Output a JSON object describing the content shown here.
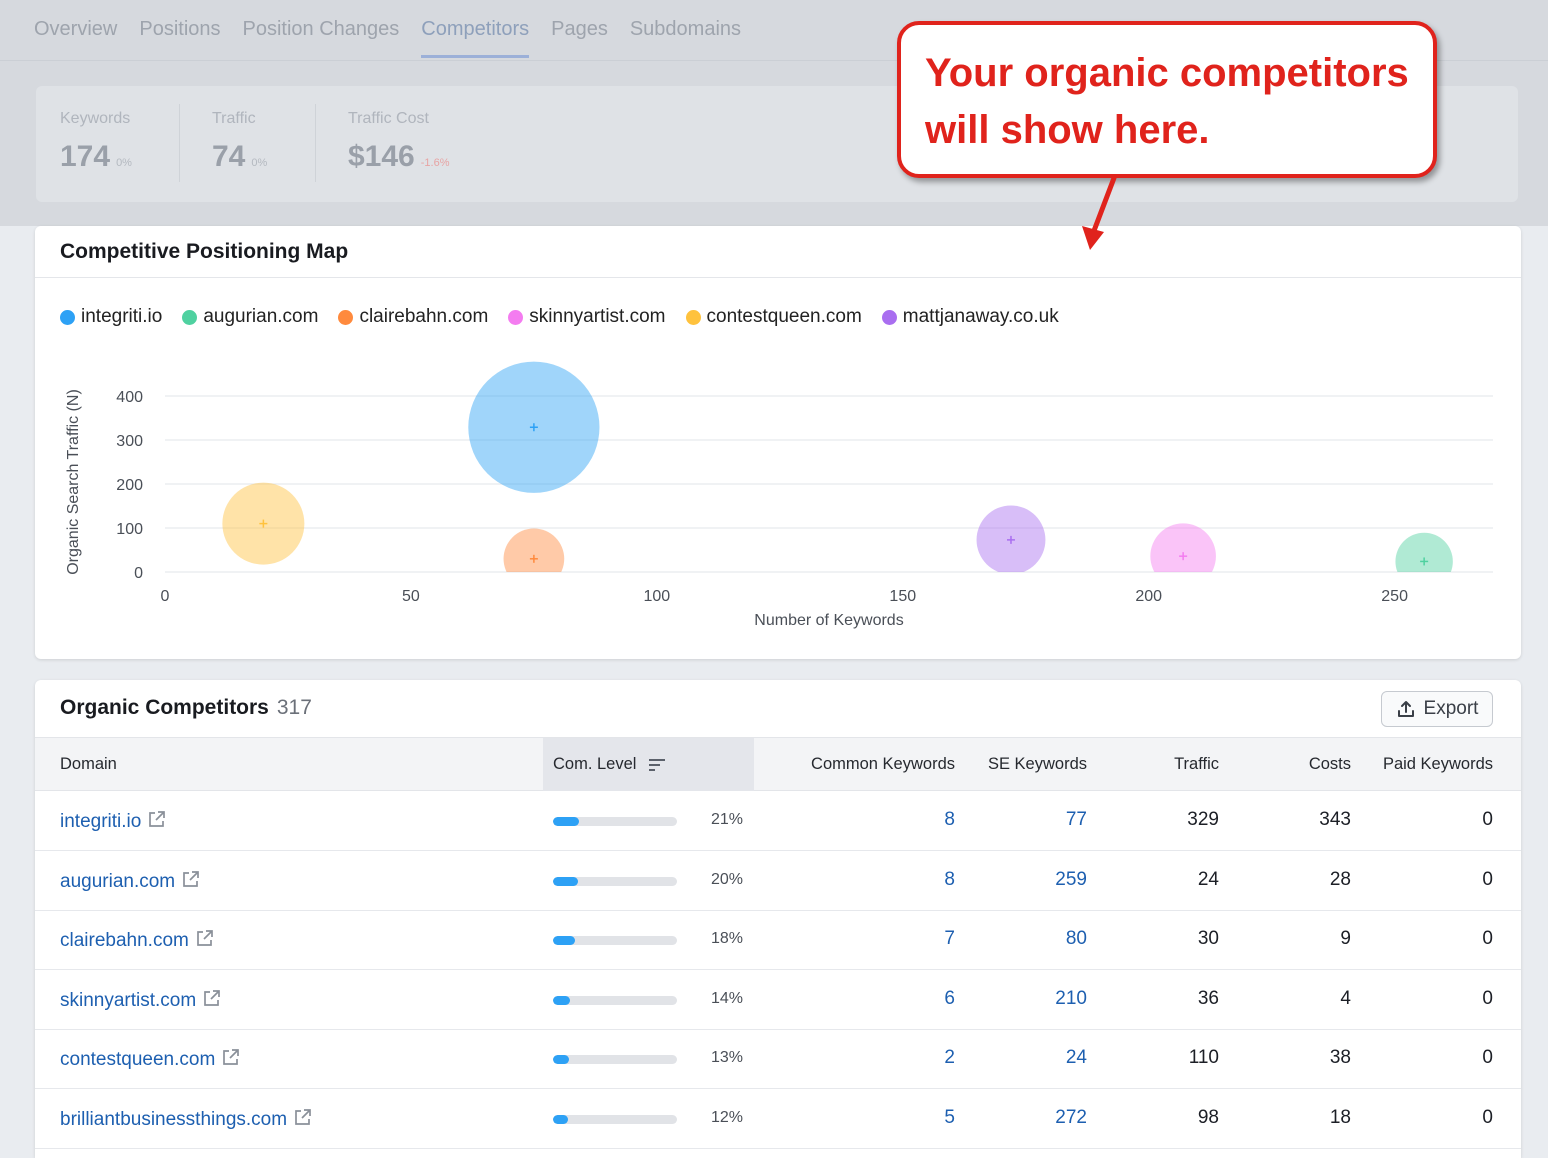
{
  "nav": {
    "tabs": [
      "Overview",
      "Positions",
      "Position Changes",
      "Competitors",
      "Pages",
      "Subdomains"
    ],
    "active_index": 3
  },
  "summary": {
    "keywords": {
      "label": "Keywords",
      "value": "174",
      "delta": "0%"
    },
    "traffic": {
      "label": "Traffic",
      "value": "74",
      "delta": "0%"
    },
    "traffic_cost": {
      "label": "Traffic Cost",
      "value": "$146",
      "delta": "-1.6%"
    }
  },
  "callout": {
    "text": "Your organic competitors\nwill show here.",
    "color": "#e0231c"
  },
  "map": {
    "title": "Competitive Positioning Map",
    "legend": [
      {
        "label": "integriti.io",
        "color": "#2da1f5"
      },
      {
        "label": "augurian.com",
        "color": "#4fd1a0"
      },
      {
        "label": "clairebahn.com",
        "color": "#ff8a3d"
      },
      {
        "label": "skinnyartist.com",
        "color": "#f47cf0"
      },
      {
        "label": "contestqueen.com",
        "color": "#ffc23d"
      },
      {
        "label": "mattjanaway.co.uk",
        "color": "#a96ef0"
      }
    ]
  },
  "chart_data": {
    "type": "scatter",
    "xlabel": "Number of Keywords",
    "ylabel": "Organic Search Traffic (N)",
    "xlim": [
      0,
      270
    ],
    "ylim": [
      0,
      400
    ],
    "x_ticks": [
      0,
      50,
      100,
      150,
      200,
      250
    ],
    "y_ticks": [
      0,
      100,
      200,
      300,
      400
    ],
    "grid": true,
    "points": [
      {
        "name": "integriti.io",
        "x": 75,
        "y": 329,
        "size": 8,
        "color": "#2da1f5"
      },
      {
        "name": "augurian.com",
        "x": 256,
        "y": 24,
        "size": 3.5,
        "color": "#4fd1a0"
      },
      {
        "name": "clairebahn.com",
        "x": 75,
        "y": 30,
        "size": 3.7,
        "color": "#ff8a3d"
      },
      {
        "name": "skinnyartist.com",
        "x": 207,
        "y": 36,
        "size": 4,
        "color": "#f47cf0"
      },
      {
        "name": "contestqueen.com",
        "x": 20,
        "y": 110,
        "size": 5,
        "color": "#ffc23d"
      },
      {
        "name": "mattjanaway.co.uk",
        "x": 172,
        "y": 73,
        "size": 4.2,
        "color": "#a96ef0"
      }
    ]
  },
  "competitors": {
    "title": "Organic Competitors",
    "count": "317",
    "export_label": "Export",
    "headers": {
      "domain": "Domain",
      "com_level": "Com. Level",
      "common_keywords": "Common Keywords",
      "se_keywords": "SE Keywords",
      "traffic": "Traffic",
      "costs": "Costs",
      "paid_keywords": "Paid Keywords"
    },
    "rows": [
      {
        "domain": "integriti.io",
        "level": 21,
        "level_label": "21%",
        "common": "8",
        "se": "77",
        "traffic": "329",
        "costs": "343",
        "paid": "0"
      },
      {
        "domain": "augurian.com",
        "level": 20,
        "level_label": "20%",
        "common": "8",
        "se": "259",
        "traffic": "24",
        "costs": "28",
        "paid": "0"
      },
      {
        "domain": "clairebahn.com",
        "level": 18,
        "level_label": "18%",
        "common": "7",
        "se": "80",
        "traffic": "30",
        "costs": "9",
        "paid": "0"
      },
      {
        "domain": "skinnyartist.com",
        "level": 14,
        "level_label": "14%",
        "common": "6",
        "se": "210",
        "traffic": "36",
        "costs": "4",
        "paid": "0"
      },
      {
        "domain": "contestqueen.com",
        "level": 13,
        "level_label": "13%",
        "common": "2",
        "se": "24",
        "traffic": "110",
        "costs": "38",
        "paid": "0"
      },
      {
        "domain": "brilliantbusinessthings.com",
        "level": 12,
        "level_label": "12%",
        "common": "5",
        "se": "272",
        "traffic": "98",
        "costs": "18",
        "paid": "0"
      }
    ]
  }
}
